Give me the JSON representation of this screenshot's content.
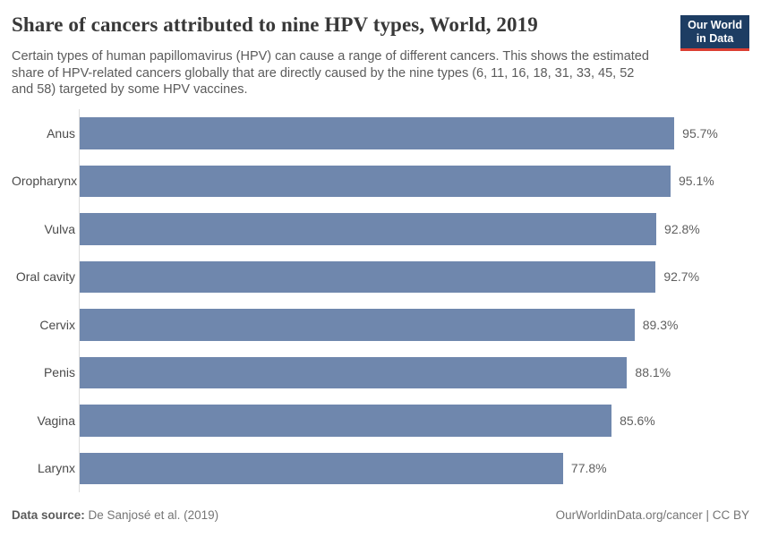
{
  "header": {
    "title": "Share of cancers attributed to nine HPV types, World, 2019",
    "subtitle_lines": [
      "Certain types of human papillomavirus (HPV) can cause a range of different cancers. This shows the estimated",
      "share of HPV-related cancers globally that are directly caused by the nine types (6, 11, 16, 18, 31, 33, 45, 52",
      "and 58) targeted by some HPV vaccines."
    ],
    "logo": {
      "line1": "Our World",
      "line2": "in Data"
    }
  },
  "chart_data": {
    "type": "bar",
    "orientation": "horizontal",
    "title": "Share of cancers attributed to nine HPV types, World, 2019",
    "xlabel": "",
    "ylabel": "",
    "xlim": [
      0,
      100
    ],
    "grid": false,
    "legend": false,
    "bar_color": "#6f87ad",
    "categories": [
      "Anus",
      "Oropharynx",
      "Vulva",
      "Oral cavity",
      "Cervix",
      "Penis",
      "Vagina",
      "Larynx"
    ],
    "values": [
      95.7,
      95.1,
      92.8,
      92.7,
      89.3,
      88.1,
      85.6,
      77.8
    ],
    "value_labels": [
      "95.7%",
      "95.1%",
      "92.8%",
      "92.7%",
      "89.3%",
      "88.1%",
      "85.6%",
      "77.8%"
    ]
  },
  "footer": {
    "datasource_label": "Data source:",
    "datasource_value": " De Sanjosé et al. (2019)",
    "attribution": "OurWorldinData.org/cancer | CC BY"
  },
  "colors": {
    "bar": "#6f87ad",
    "logo_bg": "#1d3d63",
    "logo_stripe": "#dc3e32",
    "title_text": "#383838",
    "subtitle_text": "#5b5b5b",
    "axis_line": "#dcdcdc"
  }
}
